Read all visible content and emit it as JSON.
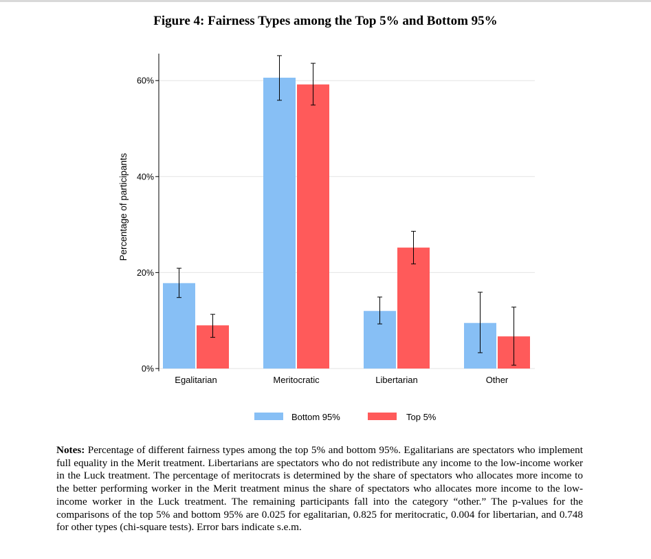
{
  "chart_data": {
    "type": "bar",
    "title": "Figure 4: Fairness Types among the Top 5% and Bottom 95%",
    "xlabel": "",
    "ylabel": "Percentage of participants",
    "ylim": [
      0,
      65
    ],
    "yticks": [
      0,
      20,
      40,
      60
    ],
    "ytick_labels": [
      "0%",
      "20%",
      "40%",
      "60%"
    ],
    "grid": true,
    "legend_position": "bottom",
    "categories": [
      "Egalitarian",
      "Meritocratic",
      "Libertarian",
      "Other"
    ],
    "series": [
      {
        "name": "Bottom 95%",
        "color": "#87bff5",
        "values": [
          17.8,
          60.6,
          12.0,
          9.5
        ],
        "error_low": [
          14.8,
          55.9,
          9.3,
          3.3
        ],
        "error_high": [
          20.9,
          65.2,
          14.9,
          15.9
        ]
      },
      {
        "name": "Top 5%",
        "color": "#ff5a5a",
        "values": [
          9.0,
          59.2,
          25.2,
          6.7
        ],
        "error_low": [
          6.5,
          54.9,
          21.8,
          0.7
        ],
        "error_high": [
          11.3,
          63.6,
          28.6,
          12.8
        ]
      }
    ]
  },
  "notes": {
    "label": "Notes:",
    "text": " Percentage of different fairness types among the top 5% and bottom 95%. Egalitarians are spectators who implement full equality in the Merit treatment. Libertarians are spectators who do not redistribute any income to the low-income worker in the Luck treatment. The percentage of meritocrats is determined by the share of spectators who allocates more income to the better performing worker in the Merit treatment minus the share of spectators who allocates more income to the low-income worker in the Luck treatment. The remaining participants fall into the category “other.” The p-values for the comparisons of the top 5% and bottom 95% are 0.025 for egalitarian, 0.825 for meritocratic, 0.004 for libertarian, and 0.748 for other types (chi-square tests). Error bars indicate s.e.m."
  }
}
